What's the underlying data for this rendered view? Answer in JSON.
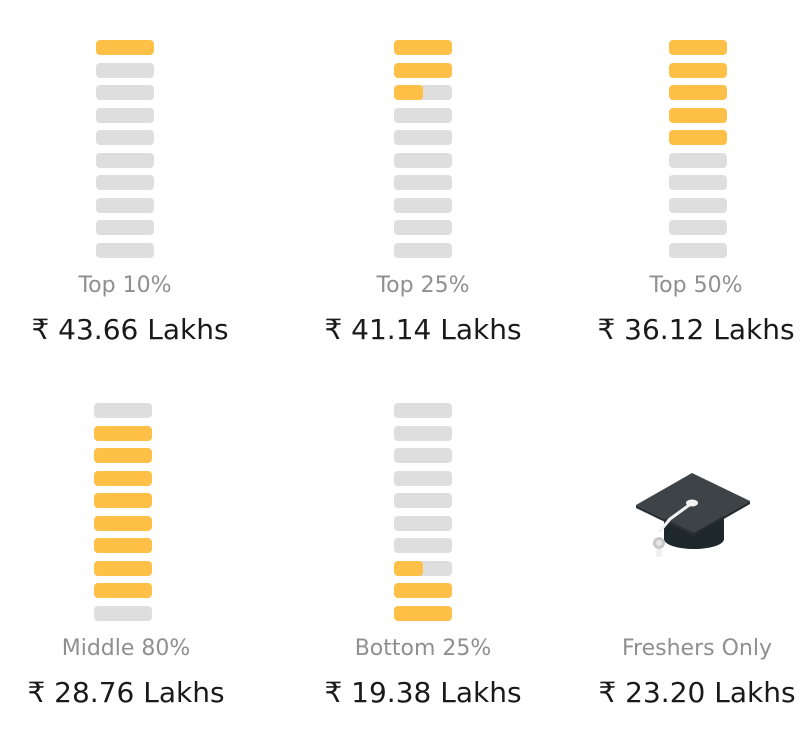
{
  "brackets": [
    {
      "label": "Top 10%",
      "value": "₹ 43.66 Lakhs",
      "fills": [
        1,
        0,
        0,
        0,
        0,
        0,
        0,
        0,
        0,
        0
      ]
    },
    {
      "label": "Top 25%",
      "value": "₹ 41.14 Lakhs",
      "fills": [
        1,
        1,
        0.5,
        0,
        0,
        0,
        0,
        0,
        0,
        0
      ]
    },
    {
      "label": "Top 50%",
      "value": "₹ 36.12 Lakhs",
      "fills": [
        1,
        1,
        1,
        1,
        1,
        0,
        0,
        0,
        0,
        0
      ]
    },
    {
      "label": "Middle 80%",
      "value": "₹ 28.76 Lakhs",
      "fills": [
        0,
        1,
        1,
        1,
        1,
        1,
        1,
        1,
        1,
        0
      ]
    },
    {
      "label": "Bottom 25%",
      "value": "₹ 19.38 Lakhs",
      "fills": [
        0,
        0,
        0,
        0,
        0,
        0,
        0,
        0.5,
        1,
        1
      ]
    },
    {
      "label": "Freshers Only",
      "value": "₹ 23.20 Lakhs",
      "icon": "graduation-cap-icon"
    }
  ],
  "colors": {
    "filled": "#fec046",
    "empty": "#dedede",
    "label": "#8f8f8f",
    "value": "#1a1a1a"
  }
}
